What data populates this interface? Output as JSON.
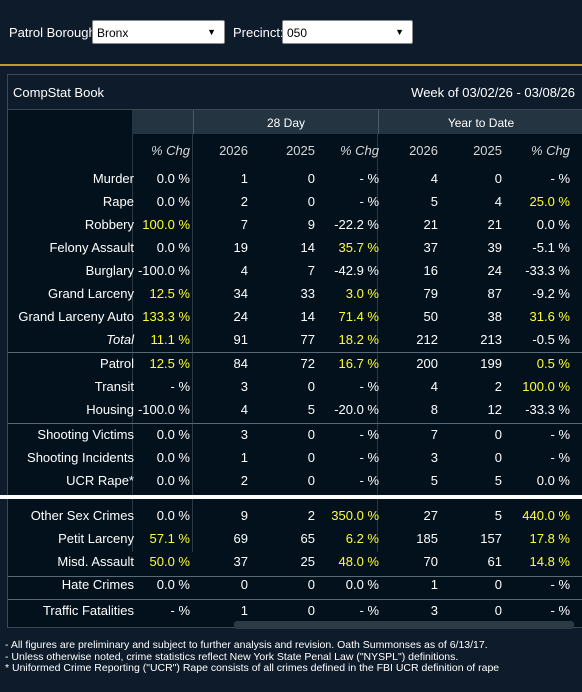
{
  "filters": {
    "borough_label": "Patrol Borough:",
    "borough_value": "Bronx",
    "precinct_label": "Precinct:",
    "precinct_value": "050"
  },
  "panel": {
    "title": "CompStat Book",
    "week": "Week of 03/02/26 - 03/08/26"
  },
  "groups": {
    "d28": "28 Day",
    "ytd": "Year to Date"
  },
  "columns": [
    "% Chg",
    "2026",
    "2025",
    "% Chg",
    "2026",
    "2025",
    "% Chg"
  ],
  "rows": [
    {
      "label": "Murder",
      "v": [
        "0.0 %",
        "1",
        "0",
        "- %",
        "4",
        "0",
        "- %"
      ],
      "y": [
        false,
        false,
        false,
        false,
        false,
        false,
        false
      ]
    },
    {
      "label": "Rape",
      "v": [
        "0.0 %",
        "2",
        "0",
        "- %",
        "5",
        "4",
        "25.0 %"
      ],
      "y": [
        false,
        false,
        false,
        false,
        false,
        false,
        true
      ]
    },
    {
      "label": "Robbery",
      "v": [
        "100.0 %",
        "7",
        "9",
        "-22.2 %",
        "21",
        "21",
        "0.0 %"
      ],
      "y": [
        true,
        false,
        false,
        false,
        false,
        false,
        false
      ]
    },
    {
      "label": "Felony Assault",
      "v": [
        "0.0 %",
        "19",
        "14",
        "35.7 %",
        "37",
        "39",
        "-5.1 %"
      ],
      "y": [
        false,
        false,
        false,
        true,
        false,
        false,
        false
      ]
    },
    {
      "label": "Burglary",
      "v": [
        "-100.0 %",
        "4",
        "7",
        "-42.9 %",
        "16",
        "24",
        "-33.3 %"
      ],
      "y": [
        false,
        false,
        false,
        false,
        false,
        false,
        false
      ]
    },
    {
      "label": "Grand Larceny",
      "v": [
        "12.5 %",
        "34",
        "33",
        "3.0 %",
        "79",
        "87",
        "-9.2 %"
      ],
      "y": [
        true,
        false,
        false,
        true,
        false,
        false,
        false
      ]
    },
    {
      "label": "Grand Larceny Auto",
      "v": [
        "133.3 %",
        "24",
        "14",
        "71.4 %",
        "50",
        "38",
        "31.6 %"
      ],
      "y": [
        true,
        false,
        false,
        true,
        false,
        false,
        true
      ]
    },
    {
      "label": "Total",
      "v": [
        "11.1 %",
        "91",
        "77",
        "18.2 %",
        "212",
        "213",
        "-0.5 %"
      ],
      "y": [
        true,
        false,
        false,
        true,
        false,
        false,
        false
      ]
    },
    {
      "label": "Patrol",
      "v": [
        "12.5 %",
        "84",
        "72",
        "16.7 %",
        "200",
        "199",
        "0.5 %"
      ],
      "y": [
        true,
        false,
        false,
        true,
        false,
        false,
        true
      ]
    },
    {
      "label": "Transit",
      "v": [
        "- %",
        "3",
        "0",
        "- %",
        "4",
        "2",
        "100.0 %"
      ],
      "y": [
        false,
        false,
        false,
        false,
        false,
        false,
        true
      ]
    },
    {
      "label": "Housing",
      "v": [
        "-100.0 %",
        "4",
        "5",
        "-20.0 %",
        "8",
        "12",
        "-33.3 %"
      ],
      "y": [
        false,
        false,
        false,
        false,
        false,
        false,
        false
      ]
    },
    {
      "label": "Shooting Victims",
      "v": [
        "0.0 %",
        "3",
        "0",
        "- %",
        "7",
        "0",
        "- %"
      ],
      "y": [
        false,
        false,
        false,
        false,
        false,
        false,
        false
      ]
    },
    {
      "label": "Shooting Incidents",
      "v": [
        "0.0 %",
        "1",
        "0",
        "- %",
        "3",
        "0",
        "- %"
      ],
      "y": [
        false,
        false,
        false,
        false,
        false,
        false,
        false
      ]
    },
    {
      "label": "UCR Rape*",
      "v": [
        "0.0 %",
        "2",
        "0",
        "- %",
        "5",
        "5",
        "0.0 %"
      ],
      "y": [
        false,
        false,
        false,
        false,
        false,
        false,
        false
      ]
    },
    {
      "label": "Other Sex Crimes",
      "v": [
        "0.0 %",
        "9",
        "2",
        "350.0 %",
        "27",
        "5",
        "440.0 %"
      ],
      "y": [
        false,
        false,
        false,
        true,
        false,
        false,
        true
      ]
    },
    {
      "label": "Petit Larceny",
      "v": [
        "57.1 %",
        "69",
        "65",
        "6.2 %",
        "185",
        "157",
        "17.8 %"
      ],
      "y": [
        true,
        false,
        false,
        true,
        false,
        false,
        true
      ]
    },
    {
      "label": "Misd. Assault",
      "v": [
        "50.0 %",
        "37",
        "25",
        "48.0 %",
        "70",
        "61",
        "14.8 %"
      ],
      "y": [
        true,
        false,
        false,
        true,
        false,
        false,
        true
      ]
    },
    {
      "label": "Hate Crimes",
      "v": [
        "0.0 %",
        "0",
        "0",
        "0.0 %",
        "1",
        "0",
        "- %"
      ],
      "y": [
        false,
        false,
        false,
        false,
        false,
        false,
        false
      ]
    },
    {
      "label": "Traffic Fatalities",
      "v": [
        "- %",
        "1",
        "0",
        "- %",
        "3",
        "0",
        "- %"
      ],
      "y": [
        false,
        false,
        false,
        false,
        false,
        false,
        false
      ]
    }
  ],
  "footnotes": [
    "- All figures are preliminary and subject to further analysis and revision. Oath Summonses as of 6/13/17.",
    "- Unless otherwise noted, crime statistics reflect New York State Penal Law (\"NYSPL\") definitions.",
    "* Uniformed Crime Reporting (\"UCR\") Rape consists of all crimes defined in the FBI UCR definition of rape"
  ],
  "colors": {
    "accent_gold": "#b89c2c",
    "highlight_yellow": "#ffff33",
    "background": "#0d1b2a"
  }
}
